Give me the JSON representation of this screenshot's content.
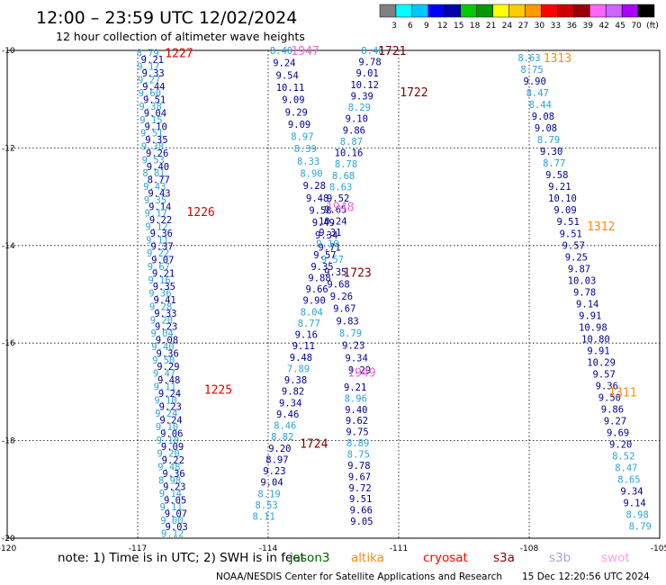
{
  "header": {
    "title": "12:00 – 23:59 UTC 12/02/2024",
    "subtitle": "12 hour collection of altimeter wave heights"
  },
  "legend": {
    "ticks": [
      "3",
      "6",
      "9",
      "12",
      "15",
      "18",
      "21",
      "24",
      "27",
      "30",
      "33",
      "36",
      "39",
      "42",
      "45",
      "70",
      "(ft)"
    ],
    "colors": [
      "#808080",
      "#00ffff",
      "#00c8ff",
      "#0000ff",
      "#0000aa",
      "#00cc00",
      "#009900",
      "#ffff00",
      "#ffcc00",
      "#ff9900",
      "#ff0000",
      "#cc0000",
      "#990000",
      "#ff66ff",
      "#cc66ff",
      "#aa00ff",
      "#000000"
    ]
  },
  "footer": {
    "note_prefix": "note:  1) Time is in UTC;  2) SWH is in feet",
    "sats": [
      {
        "name": "jason3",
        "color": "#006400"
      },
      {
        "name": "altika",
        "color": "#ff8c00"
      },
      {
        "name": "cryosat",
        "color": "#ff0000"
      },
      {
        "name": "s3a",
        "color": "#8b0000"
      },
      {
        "name": "s3b",
        "color": "#b0a0e0"
      },
      {
        "name": "swot",
        "color": "#ffa0e0"
      }
    ],
    "credit": "NOAA/NESDIS Center for Satellite Applications and Research",
    "timestamp": "15 Dec 12:20:56 UTC 2024"
  },
  "chart_data": {
    "type": "scatter",
    "xlim": [
      -120,
      -105
    ],
    "ylim": [
      -20,
      -10
    ],
    "xticks": [
      -120,
      -117,
      -114,
      -111,
      -108,
      -105
    ],
    "yticks": [
      -10,
      -12,
      -14,
      -16,
      -18,
      -20
    ],
    "grid": true,
    "colors": {
      "dark": "#000096",
      "light": "#2aa4d8",
      "red": "#e00000",
      "maroon": "#800000",
      "pink": "#ee66dd",
      "orange": "#ff8c00"
    },
    "time_labels": [
      {
        "text": "1227",
        "lon": -116.05,
        "lat": -10.05,
        "color": "red"
      },
      {
        "text": "1226",
        "lon": -115.55,
        "lat": -13.3,
        "color": "red"
      },
      {
        "text": "1225",
        "lon": -115.15,
        "lat": -16.95,
        "color": "red"
      },
      {
        "text": "1947",
        "lon": -113.15,
        "lat": -10.0,
        "color": "pink"
      },
      {
        "text": "1948",
        "lon": -112.35,
        "lat": -13.2,
        "color": "pink"
      },
      {
        "text": "1949",
        "lon": -111.85,
        "lat": -16.6,
        "color": "pink"
      },
      {
        "text": "1721",
        "lon": -111.15,
        "lat": -10.0,
        "color": "maroon"
      },
      {
        "text": "1722",
        "lon": -110.65,
        "lat": -10.85,
        "color": "maroon"
      },
      {
        "text": "1723",
        "lon": -111.95,
        "lat": -14.55,
        "color": "maroon"
      },
      {
        "text": "1724",
        "lon": -112.95,
        "lat": -18.05,
        "color": "maroon"
      },
      {
        "text": "1313",
        "lon": -107.35,
        "lat": -10.15,
        "color": "orange"
      },
      {
        "text": "1312",
        "lon": -106.35,
        "lat": -13.6,
        "color": "orange"
      },
      {
        "text": "1311",
        "lon": -105.85,
        "lat": -17.0,
        "color": "orange"
      }
    ],
    "tracks": [
      {
        "name": "1227-1225",
        "start": [
          -116.72,
          -10.05
        ],
        "end": [
          -116.15,
          -19.9
        ],
        "jitter": 0.05,
        "values": [
          8.79,
          9.21,
          9.17,
          9.33,
          9.27,
          9.44,
          9.6,
          9.51,
          9.38,
          9.04,
          9.15,
          9.1,
          9.51,
          9.35,
          9.38,
          9.26,
          9.53,
          9.4,
          8.81,
          8.77,
          9.43,
          9.43,
          9.35,
          9.14,
          9.17,
          9.22,
          9.12,
          9.36,
          9.11,
          9.37,
          9.22,
          9.07,
          9.67,
          9.21,
          9.16,
          9.35,
          9.36,
          9.41,
          9.28,
          9.33,
          9.2,
          9.23,
          9.04,
          9.08,
          9.4,
          9.36,
          9.5,
          9.29,
          9.47,
          9.48,
          9.11,
          9.24,
          9.1,
          9.23,
          9.24,
          9.24,
          9.1,
          9.06,
          9.1,
          9.09,
          9.2,
          9.22,
          9.48,
          9.36,
          8.98,
          9.23,
          9.14,
          9.05,
          9.11,
          9.07,
          9.0,
          9.03,
          9.12
        ],
        "colors": [
          "light",
          "dark",
          "light",
          "dark",
          "light",
          "dark",
          "light",
          "dark",
          "light",
          "dark",
          "light",
          "dark",
          "light",
          "dark",
          "light",
          "dark",
          "light",
          "dark",
          "light",
          "dark",
          "light",
          "dark",
          "light",
          "dark",
          "light",
          "dark",
          "light",
          "dark",
          "light",
          "dark",
          "light",
          "dark",
          "light",
          "dark",
          "light",
          "dark",
          "light",
          "dark",
          "light",
          "dark",
          "light",
          "dark",
          "light",
          "dark",
          "light",
          "dark",
          "light",
          "dark",
          "light",
          "dark",
          "light",
          "dark",
          "light",
          "dark",
          "light",
          "dark",
          "light",
          "dark",
          "light",
          "dark",
          "light",
          "dark",
          "light",
          "dark",
          "light",
          "dark",
          "light",
          "dark",
          "light",
          "dark",
          "light",
          "dark",
          "light"
        ]
      },
      {
        "name": "1947-1949",
        "start": [
          -113.7,
          -10.0
        ],
        "end": [
          -111.9,
          -16.55
        ],
        "jitter": 0.0,
        "values": [
          8.4,
          9.24,
          9.54,
          10.11,
          9.09,
          9.29,
          9.09,
          8.97,
          8.39,
          8.33,
          8.9,
          9.28,
          9.48,
          9.58,
          9.49,
          9.34,
          9.71,
          9.57,
          9.35,
          9.68,
          9.26,
          9.67,
          9.83,
          8.79,
          9.23,
          9.34,
          9.29
        ],
        "colors": [
          "light",
          "dark",
          "dark",
          "dark",
          "dark",
          "dark",
          "dark",
          "light",
          "light",
          "light",
          "light",
          "dark",
          "dark",
          "dark",
          "dark",
          "dark",
          "dark",
          "light",
          "dark",
          "dark",
          "dark",
          "dark",
          "dark",
          "light",
          "dark",
          "dark",
          "dark"
        ]
      },
      {
        "name": "1721-1724",
        "start": [
          -111.6,
          -10.0
        ],
        "end": [
          -114.1,
          -19.55
        ],
        "jitter": 0.0,
        "values": [
          8.46,
          9.78,
          9.01,
          10.12,
          9.39,
          8.29,
          9.1,
          9.86,
          8.87,
          10.16,
          8.78,
          8.68,
          8.63,
          9.52,
          9.65,
          10.24,
          9.31,
          9.1,
          9.57,
          9.35,
          9.88,
          9.66,
          9.9,
          8.04,
          8.77,
          9.16,
          9.11,
          9.48,
          7.89,
          9.38,
          9.82,
          9.34,
          9.46,
          8.46,
          8.82,
          9.2,
          8.97,
          9.23,
          9.04,
          8.19,
          8.53,
          8.11
        ],
        "colors": [
          "light",
          "dark",
          "dark",
          "dark",
          "dark",
          "light",
          "dark",
          "dark",
          "light",
          "dark",
          "light",
          "light",
          "light",
          "dark",
          "dark",
          "dark",
          "dark",
          "light",
          "dark",
          "dark",
          "dark",
          "dark",
          "dark",
          "light",
          "light",
          "dark",
          "dark",
          "dark",
          "light",
          "dark",
          "dark",
          "dark",
          "dark",
          "light",
          "light",
          "dark",
          "dark",
          "dark",
          "dark",
          "light",
          "light",
          "light"
        ]
      },
      {
        "name": "1949-cont",
        "start": [
          -112.0,
          -16.9
        ],
        "end": [
          -111.85,
          -19.65
        ],
        "jitter": 0.0,
        "values": [
          9.21,
          8.96,
          9.4,
          9.62,
          9.75,
          8.89,
          8.75,
          9.78,
          9.67,
          9.72,
          9.51,
          9.66,
          9.05
        ],
        "colors": [
          "dark",
          "light",
          "dark",
          "dark",
          "dark",
          "light",
          "light",
          "dark",
          "dark",
          "dark",
          "dark",
          "dark",
          "dark"
        ]
      },
      {
        "name": "1313-1311",
        "start": [
          -108.0,
          -10.15
        ],
        "end": [
          -105.45,
          -19.75
        ],
        "jitter": 0.0,
        "values": [
          8.63,
          8.75,
          9.9,
          8.47,
          8.44,
          9.08,
          9.08,
          8.79,
          9.3,
          8.77,
          9.58,
          9.21,
          10.1,
          9.09,
          9.51,
          9.51,
          9.57,
          9.25,
          9.87,
          10.03,
          9.78,
          9.14,
          9.91,
          10.98,
          10.8,
          9.91,
          10.29,
          9.57,
          9.36,
          9.5,
          9.86,
          9.27,
          9.69,
          9.2,
          8.52,
          8.47,
          8.65,
          9.34,
          9.14,
          8.98,
          8.79
        ],
        "colors": [
          "light",
          "light",
          "dark",
          "light",
          "light",
          "dark",
          "dark",
          "light",
          "dark",
          "light",
          "dark",
          "dark",
          "dark",
          "dark",
          "dark",
          "dark",
          "dark",
          "dark",
          "dark",
          "dark",
          "dark",
          "dark",
          "dark",
          "dark",
          "dark",
          "dark",
          "dark",
          "dark",
          "dark",
          "dark",
          "dark",
          "dark",
          "dark",
          "dark",
          "light",
          "light",
          "light",
          "dark",
          "dark",
          "light",
          "light"
        ]
      }
    ]
  }
}
